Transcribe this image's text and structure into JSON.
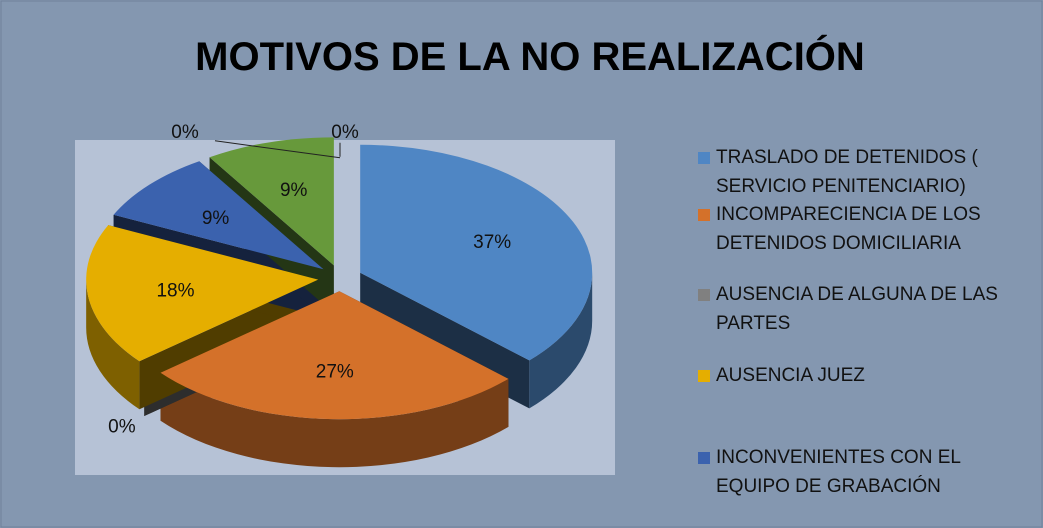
{
  "chart_data": {
    "type": "pie",
    "title": "MOTIVOS DE LA NO REALIZACIÓN",
    "categories": [
      "TRASLADO DE DETENIDOS ( SERVICIO PENITENCIARIO)",
      "INCOMPARECIENCIA DE LOS DETENIDOS DOMICILIARIA",
      "AUSENCIA DE ALGUNA DE LAS PARTES",
      "AUSENCIA JUEZ",
      "INCONVENIENTES CON EL EQUIPO DE GRABACIÓN",
      null,
      null,
      null
    ],
    "values": [
      37,
      27,
      0,
      18,
      9,
      9,
      0,
      0
    ],
    "value_labels": [
      "37%",
      "27%",
      "0%",
      "18%",
      "9%",
      "9%",
      "0%",
      "0%"
    ],
    "colors": [
      "#4f86c4",
      "#d4712a",
      "#808080",
      "#e5ae00",
      "#3b62ae",
      "#67993b",
      "#4bacc6",
      "#f79646"
    ]
  }
}
